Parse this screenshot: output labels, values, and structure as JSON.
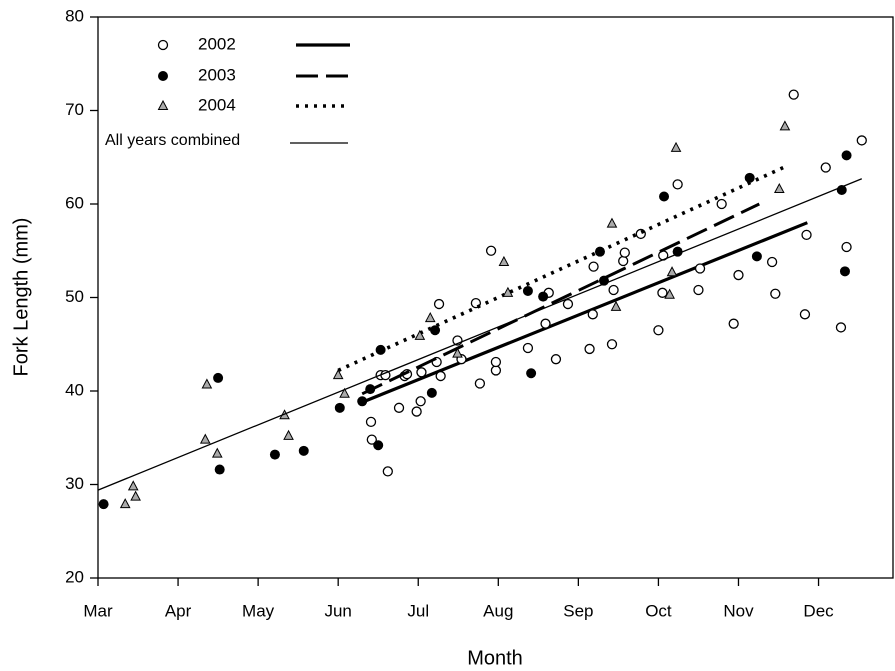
{
  "chart_data": {
    "type": "scatter",
    "x_label": "Month",
    "y_label": "Fork Length (mm)",
    "xlim": [
      0,
      9.93
    ],
    "ylim": [
      20,
      80
    ],
    "xticks": [
      {
        "value": 0,
        "label": "Mar"
      },
      {
        "value": 1,
        "label": "Apr"
      },
      {
        "value": 2,
        "label": "May"
      },
      {
        "value": 3,
        "label": "Jun"
      },
      {
        "value": 4,
        "label": "Jul"
      },
      {
        "value": 5,
        "label": "Aug"
      },
      {
        "value": 6,
        "label": "Sep"
      },
      {
        "value": 7,
        "label": "Oct"
      },
      {
        "value": 8,
        "label": "Nov"
      },
      {
        "value": 9,
        "label": "Dec"
      }
    ],
    "yticks": [
      20,
      30,
      40,
      50,
      60,
      70,
      80
    ],
    "series": [
      {
        "name": "2002",
        "marker": "open-circle",
        "color": "#000000",
        "dash": "solid",
        "line_width": 3.2,
        "x": [
          3.41,
          3.42,
          3.53,
          3.59,
          3.62,
          3.76,
          3.83,
          3.86,
          3.98,
          4.03,
          4.04,
          4.23,
          4.28,
          4.26,
          4.49,
          4.54,
          4.77,
          4.72,
          4.91,
          4.97,
          4.97,
          5.37,
          5.59,
          5.63,
          5.72,
          5.87,
          6.14,
          6.18,
          6.19,
          6.42,
          6.44,
          6.56,
          6.58,
          6.78,
          7.0,
          7.05,
          7.06,
          7.24,
          7.5,
          7.52,
          7.79,
          7.94,
          8.0,
          8.42,
          8.46,
          8.69,
          8.83,
          8.85,
          9.09,
          9.28,
          9.35,
          9.54
        ],
        "values": [
          36.7,
          34.8,
          41.7,
          41.7,
          31.4,
          38.2,
          41.6,
          41.8,
          37.8,
          38.9,
          42.0,
          43.1,
          41.6,
          49.3,
          45.4,
          43.4,
          40.8,
          49.4,
          55.0,
          42.2,
          43.1,
          44.6,
          47.2,
          50.5,
          43.4,
          49.3,
          44.5,
          48.2,
          53.3,
          45.0,
          50.8,
          53.9,
          54.8,
          56.8,
          46.5,
          50.5,
          54.5,
          62.1,
          50.8,
          53.1,
          60.0,
          47.2,
          52.4,
          53.8,
          50.4,
          71.7,
          48.2,
          56.7,
          63.9,
          46.8,
          55.4,
          66.8
        ],
        "fit_x": [
          3.3,
          8.86
        ],
        "fit_values": [
          38.8,
          58.0
        ]
      },
      {
        "name": "2003",
        "marker": "filled-circle",
        "color": "#000000",
        "dash": "dashed",
        "line_width": 3,
        "x": [
          0.07,
          1.5,
          1.52,
          2.21,
          2.57,
          3.02,
          3.3,
          3.4,
          3.5,
          3.53,
          4.17,
          4.21,
          5.37,
          5.41,
          5.56,
          6.27,
          6.32,
          7.07,
          7.24,
          8.14,
          8.23,
          9.29,
          9.33,
          9.35
        ],
        "values": [
          27.9,
          41.4,
          31.6,
          33.2,
          33.6,
          38.2,
          38.9,
          40.2,
          34.2,
          44.4,
          39.8,
          46.5,
          50.7,
          41.9,
          50.1,
          54.9,
          51.8,
          60.8,
          54.9,
          62.8,
          54.4,
          61.5,
          52.8,
          65.2
        ],
        "fit_x": [
          3.3,
          8.26
        ],
        "fit_values": [
          39.7,
          60.0
        ]
      },
      {
        "name": "2004",
        "marker": "triangle",
        "color": "#000000",
        "dash": "dotted",
        "line_width": 3.6,
        "x": [
          0.34,
          0.44,
          0.47,
          1.36,
          1.34,
          1.49,
          2.33,
          2.38,
          3.0,
          3.08,
          4.02,
          4.15,
          4.49,
          5.07,
          5.12,
          6.42,
          6.47,
          7.17,
          7.14,
          7.22,
          8.51,
          8.58
        ],
        "values": [
          27.9,
          29.8,
          28.7,
          40.7,
          34.8,
          33.3,
          37.4,
          35.2,
          41.7,
          39.7,
          45.9,
          47.8,
          44.0,
          53.8,
          50.5,
          57.9,
          49.0,
          52.7,
          50.3,
          66.0,
          61.6,
          68.3
        ],
        "fit_x": [
          3.0,
          8.56
        ],
        "fit_values": [
          42.2,
          63.9
        ]
      },
      {
        "name": "All years combined",
        "marker": "none",
        "color": "#000000",
        "dash": "solid",
        "line_width": 1.3,
        "x": [],
        "values": [],
        "fit_x": [
          0.0,
          9.54
        ],
        "fit_values": [
          29.4,
          62.7
        ]
      }
    ]
  }
}
